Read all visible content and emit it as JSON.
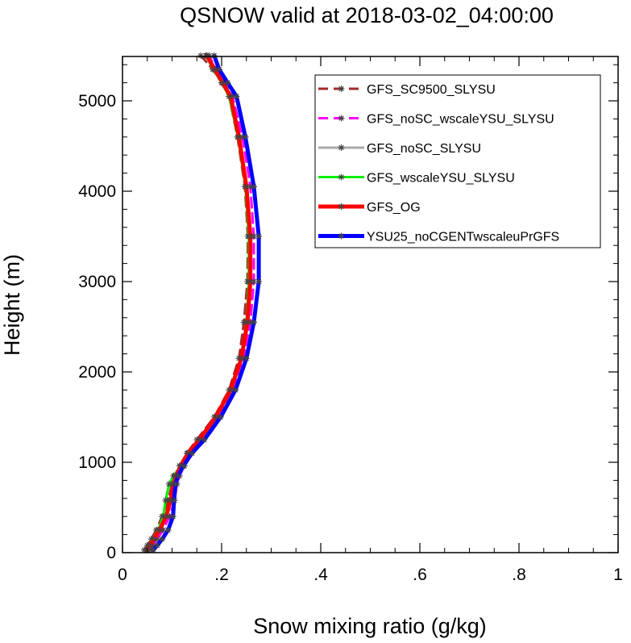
{
  "chart_data": {
    "type": "line",
    "title": "QSNOW valid at 2018-03-02_04:00:00",
    "xlabel": "Snow mixing ratio (g/kg)",
    "ylabel": "Height (m)",
    "xlim": [
      0,
      1
    ],
    "ylim": [
      0,
      5500
    ],
    "x_ticks": [
      0,
      0.2,
      0.4,
      0.6,
      0.8,
      1
    ],
    "x_tick_labels": [
      "0",
      ".2",
      ".4",
      ".6",
      ".8",
      "1"
    ],
    "y_ticks": [
      0,
      1000,
      2000,
      3000,
      4000,
      5000
    ],
    "y_tick_labels": [
      "0",
      "1000",
      "2000",
      "3000",
      "4000",
      "5000"
    ],
    "legend_position": "top-right",
    "series": [
      {
        "name": "GFS_SC9500_SLYSU",
        "color": "#a52a2a",
        "dash": "dashed",
        "width": 3,
        "x": [
          0.044,
          0.05,
          0.058,
          0.068,
          0.08,
          0.092,
          0.1,
          0.105,
          0.115,
          0.13,
          0.15,
          0.185,
          0.215,
          0.235,
          0.245,
          0.252,
          0.253,
          0.247,
          0.232,
          0.215,
          0.2,
          0.182,
          0.158
        ],
        "y": [
          30,
          80,
          150,
          250,
          400,
          580,
          760,
          850,
          960,
          1100,
          1250,
          1500,
          1800,
          2150,
          2550,
          3000,
          3500,
          4050,
          4600,
          5050,
          5200,
          5350,
          5500
        ]
      },
      {
        "name": "GFS_noSC_wscaleYSU_SLYSU",
        "color": "#ff00ff",
        "dash": "dashed",
        "width": 3,
        "x": [
          0.055,
          0.062,
          0.07,
          0.082,
          0.095,
          0.105,
          0.11,
          0.115,
          0.125,
          0.14,
          0.165,
          0.195,
          0.225,
          0.245,
          0.258,
          0.265,
          0.265,
          0.258,
          0.242,
          0.222,
          0.205,
          0.188,
          0.175
        ],
        "y": [
          30,
          80,
          150,
          250,
          400,
          580,
          760,
          850,
          960,
          1100,
          1250,
          1500,
          1800,
          2150,
          2550,
          3000,
          3500,
          4050,
          4600,
          5050,
          5200,
          5350,
          5500
        ]
      },
      {
        "name": "GFS_noSC_SLYSU",
        "color": "#aaaaaa",
        "dash": "solid",
        "width": 3,
        "x": [
          0.05,
          0.056,
          0.064,
          0.075,
          0.088,
          0.097,
          0.103,
          0.108,
          0.118,
          0.132,
          0.155,
          0.188,
          0.218,
          0.24,
          0.252,
          0.258,
          0.258,
          0.25,
          0.235,
          0.218,
          0.202,
          0.186,
          0.17
        ],
        "y": [
          30,
          80,
          150,
          250,
          400,
          580,
          760,
          850,
          960,
          1100,
          1250,
          1500,
          1800,
          2150,
          2550,
          3000,
          3500,
          4050,
          4600,
          5050,
          5200,
          5350,
          5500
        ]
      },
      {
        "name": "GFS_wscaleYSU_SLYSU",
        "color": "#00ee00",
        "dash": "solid",
        "width": 3,
        "x": [
          0.048,
          0.054,
          0.062,
          0.072,
          0.082,
          0.087,
          0.094,
          0.103,
          0.118,
          0.133,
          0.155,
          0.188,
          0.218,
          0.24,
          0.25,
          0.255,
          0.255,
          0.248,
          0.233,
          0.215,
          0.2,
          0.183,
          0.168
        ],
        "y": [
          30,
          80,
          150,
          250,
          400,
          580,
          760,
          850,
          960,
          1100,
          1250,
          1500,
          1800,
          2150,
          2550,
          3000,
          3500,
          4050,
          4600,
          5050,
          5200,
          5350,
          5500
        ]
      },
      {
        "name": "GFS_OG",
        "color": "#ff0000",
        "dash": "solid",
        "width": 5,
        "x": [
          0.05,
          0.056,
          0.064,
          0.075,
          0.088,
          0.097,
          0.103,
          0.108,
          0.118,
          0.132,
          0.155,
          0.188,
          0.218,
          0.24,
          0.252,
          0.258,
          0.258,
          0.25,
          0.235,
          0.218,
          0.202,
          0.186,
          0.17
        ],
        "y": [
          30,
          80,
          150,
          250,
          400,
          580,
          760,
          850,
          960,
          1100,
          1250,
          1500,
          1800,
          2150,
          2550,
          3000,
          3500,
          4050,
          4600,
          5050,
          5200,
          5350,
          5500
        ]
      },
      {
        "name": "YSU25_noCGENTwscaleuPrGFS",
        "color": "#0000ff",
        "dash": "solid",
        "width": 5,
        "x": [
          0.062,
          0.07,
          0.08,
          0.092,
          0.102,
          0.104,
          0.107,
          0.112,
          0.123,
          0.14,
          0.165,
          0.198,
          0.228,
          0.25,
          0.265,
          0.275,
          0.275,
          0.265,
          0.248,
          0.23,
          0.212,
          0.195,
          0.185
        ],
        "y": [
          30,
          80,
          150,
          250,
          400,
          580,
          760,
          850,
          960,
          1100,
          1250,
          1500,
          1800,
          2150,
          2550,
          3000,
          3500,
          4050,
          4600,
          5050,
          5200,
          5350,
          5500
        ]
      }
    ]
  }
}
